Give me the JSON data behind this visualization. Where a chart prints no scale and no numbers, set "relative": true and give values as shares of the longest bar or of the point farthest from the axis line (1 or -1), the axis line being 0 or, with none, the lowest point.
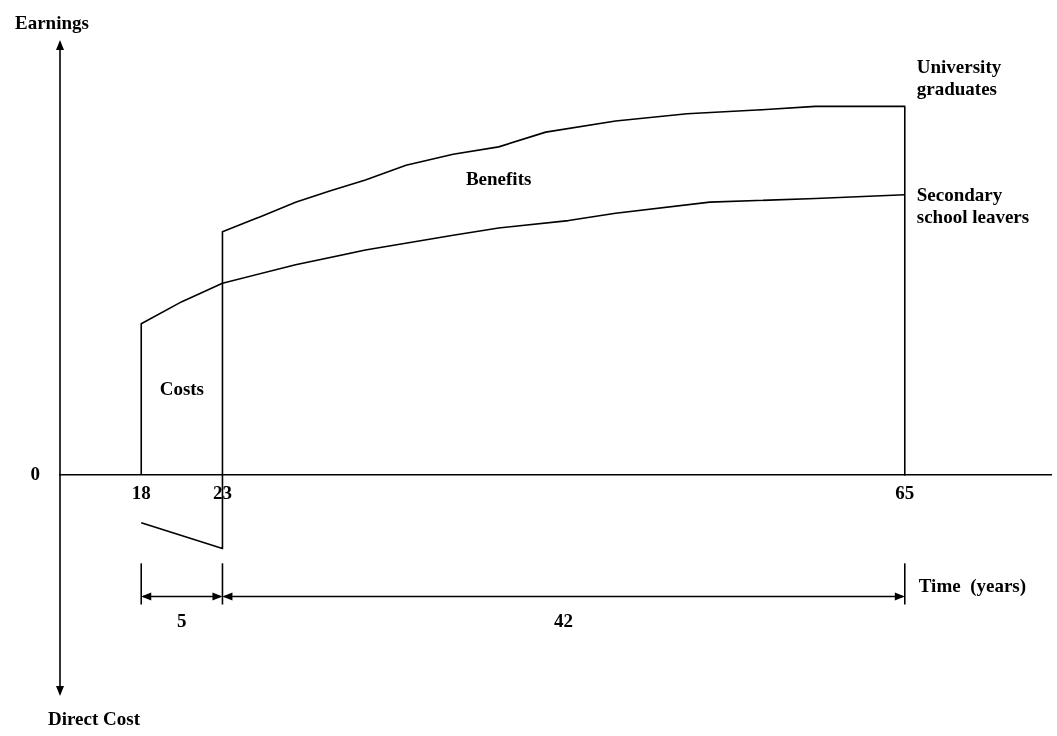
{
  "chart_data": {
    "type": "line",
    "relative": true,
    "xlabel": "Time  (years)",
    "ylabel": "Earnings",
    "xlim": [
      13,
      74
    ],
    "xticks": [
      18,
      23,
      65
    ],
    "legend": false,
    "marker": "none",
    "line_style": "solid",
    "grid": false,
    "series": [
      {
        "name": "University graduates",
        "color": "#000000",
        "x": [
          18,
          23,
          23,
          25.3,
          27.5,
          29.6,
          31.8,
          34.3,
          37.2,
          40,
          42.9,
          47.2,
          51.6,
          55.9,
          59.5,
          65,
          65
        ],
        "values": [
          -0.13,
          -0.2,
          0.66,
          0.7,
          0.74,
          0.77,
          0.8,
          0.84,
          0.87,
          0.89,
          0.93,
          0.96,
          0.98,
          0.99,
          1,
          1,
          0
        ]
      },
      {
        "name": "Secondary school leavers",
        "color": "#000000",
        "x": [
          18,
          18,
          20.5,
          23,
          27.5,
          31.8,
          37.2,
          40,
          44.3,
          47.2,
          53,
          59.5,
          65
        ],
        "values": [
          0,
          0.41,
          0.47,
          0.52,
          0.57,
          0.61,
          0.65,
          0.67,
          0.69,
          0.71,
          0.74,
          0.75,
          0.76
        ]
      }
    ],
    "annotations": [
      "Benefits",
      "Costs",
      "0",
      "5",
      "42",
      "Direct Cost"
    ]
  }
}
